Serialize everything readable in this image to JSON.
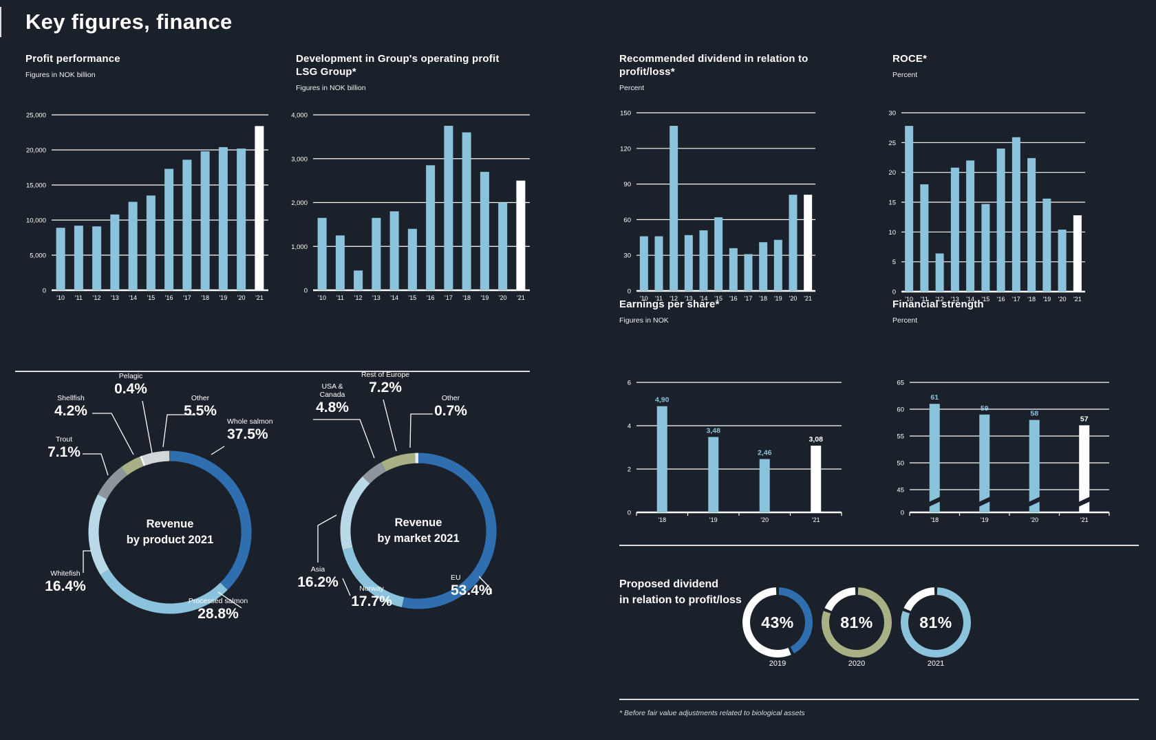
{
  "page_title": "Key figures, finance",
  "footnote": "* Before fair value adjustments related to biological assets",
  "colors": {
    "background": "#1b212b",
    "bar": "#8cc3dc",
    "highlight": "#ffffff",
    "grid": "#ffffff",
    "dark_blue": "#2f6fb0",
    "light_blue": "#8cc3dc",
    "pale_blue": "#bad9e8",
    "gray": "#8e959c",
    "olive": "#a7b185",
    "light_gray": "#d3d6d9"
  },
  "chart_data": [
    {
      "id": "profit_performance",
      "type": "bar",
      "title": "Profit performance",
      "subtitle": "Figures in NOK billion",
      "categories": [
        "'10",
        "'11",
        "'12",
        "'13",
        "'14",
        "'15",
        "'16",
        "'17",
        "'18",
        "'19",
        "'20",
        "'21"
      ],
      "values": [
        8900,
        9200,
        9100,
        10800,
        12600,
        13500,
        17300,
        18600,
        19800,
        20400,
        20200,
        23400
      ],
      "ylim": [
        0,
        25000
      ],
      "yticks": [
        {
          "value": 0,
          "label": "0"
        },
        {
          "value": 5000,
          "label": "5,000"
        },
        {
          "value": 10000,
          "label": "10,000"
        },
        {
          "value": 15000,
          "label": "15,000"
        },
        {
          "value": 20000,
          "label": "20,000"
        },
        {
          "value": 25000,
          "label": "25,000"
        }
      ],
      "highlight_last": true
    },
    {
      "id": "operating_profit",
      "type": "bar",
      "title": "Development in Group's operating profit",
      "title2": "LSG Group*",
      "subtitle": "Figures in NOK billion",
      "categories": [
        "'10",
        "'11",
        "'12",
        "'13",
        "'14",
        "'15",
        "'16",
        "'17",
        "'18",
        "'19",
        "'20",
        "'21"
      ],
      "values": [
        1650,
        1250,
        450,
        1650,
        1800,
        1400,
        2850,
        3750,
        3600,
        2700,
        2000,
        2500
      ],
      "ylim": [
        0,
        4000
      ],
      "yticks": [
        {
          "value": 0,
          "label": "0"
        },
        {
          "value": 1000,
          "label": "1,000"
        },
        {
          "value": 2000,
          "label": "2,000"
        },
        {
          "value": 3000,
          "label": "3,000"
        },
        {
          "value": 4000,
          "label": "4,000"
        }
      ],
      "highlight_last": true
    },
    {
      "id": "dividend_recommended",
      "type": "bar",
      "title": "Recommended dividend in relation to",
      "title2": "profit/loss*",
      "subtitle": "Percent",
      "categories": [
        "'10",
        "'11",
        "'12",
        "'13",
        "'14",
        "'15",
        "'16",
        "'17",
        "'18",
        "'19",
        "'20",
        "'21"
      ],
      "values": [
        46,
        46,
        139,
        47,
        51,
        62,
        36,
        31,
        41,
        43,
        81,
        81
      ],
      "ylim": [
        0,
        150
      ],
      "yticks": [
        {
          "value": 0,
          "label": "0"
        },
        {
          "value": 30,
          "label": "30"
        },
        {
          "value": 60,
          "label": "60"
        },
        {
          "value": 90,
          "label": "90"
        },
        {
          "value": 120,
          "label": "120"
        },
        {
          "value": 150,
          "label": "150"
        }
      ],
      "highlight_last": true
    },
    {
      "id": "roce",
      "type": "bar",
      "title": "ROCE*",
      "subtitle": "Percent",
      "categories": [
        "'10",
        "'11",
        "'12",
        "'13",
        "'14",
        "'15",
        "'16",
        "'17",
        "'18",
        "'19",
        "'20",
        "'21"
      ],
      "values": [
        27.8,
        18,
        6.4,
        20.8,
        22,
        14.7,
        24,
        25.9,
        22.4,
        15.6,
        10.4,
        12.8
      ],
      "ylim": [
        0,
        30
      ],
      "yticks": [
        {
          "value": 0,
          "label": "0"
        },
        {
          "value": 5,
          "label": "5"
        },
        {
          "value": 10,
          "label": "10"
        },
        {
          "value": 15,
          "label": "15"
        },
        {
          "value": 20,
          "label": "20"
        },
        {
          "value": 25,
          "label": "25"
        },
        {
          "value": 30,
          "label": "30"
        }
      ],
      "highlight_last": true
    },
    {
      "id": "earnings_per_share",
      "type": "bar",
      "title": "Earnings per share*",
      "subtitle": "Figures in NOK",
      "categories": [
        "'18",
        "'19",
        "'20",
        "'21"
      ],
      "values": [
        4.9,
        3.48,
        2.46,
        3.08
      ],
      "value_labels": [
        "4,90",
        "3,48",
        "2,46",
        "3,08"
      ],
      "ylim": [
        0,
        6
      ],
      "yticks": [
        {
          "value": 0,
          "label": "0"
        },
        {
          "value": 2,
          "label": "2"
        },
        {
          "value": 4,
          "label": "4"
        },
        {
          "value": 6,
          "label": "6"
        }
      ],
      "highlight_last": true
    },
    {
      "id": "financial_strength",
      "type": "bar",
      "title": "Financial strength",
      "subtitle": "Percent",
      "categories": [
        "'18",
        "'19",
        "'20",
        "'21"
      ],
      "values": [
        61,
        59,
        58,
        57
      ],
      "value_labels": [
        "61",
        "59",
        "58",
        "57"
      ],
      "ylim": [
        0,
        65
      ],
      "broken_axis": true,
      "yticks": [
        {
          "value": 0,
          "label": "0"
        },
        {
          "value": 45,
          "label": "45"
        },
        {
          "value": 50,
          "label": "50"
        },
        {
          "value": 55,
          "label": "55"
        },
        {
          "value": 60,
          "label": "60"
        },
        {
          "value": 65,
          "label": "65"
        }
      ],
      "highlight_last": true
    },
    {
      "id": "revenue_by_product",
      "type": "pie",
      "center_label": [
        "Revenue",
        "by product 2021"
      ],
      "segments": [
        {
          "label": "Whole salmon",
          "pct": 37.5,
          "pct_label": "37.5%",
          "color": "#2f6fb0"
        },
        {
          "label": "Processed salmon",
          "pct": 28.8,
          "pct_label": "28.8%",
          "color": "#8cc3dc"
        },
        {
          "label": "Whitefish",
          "pct": 16.4,
          "pct_label": "16.4%",
          "color": "#bad9e8"
        },
        {
          "label": "Trout",
          "pct": 7.1,
          "pct_label": "7.1%",
          "color": "#8e959c"
        },
        {
          "label": "Shellfish",
          "pct": 4.2,
          "pct_label": "4.2%",
          "color": "#a7b185"
        },
        {
          "label": "Pelagic",
          "pct": 0.4,
          "pct_label": "0.4%",
          "color": "#ffffff"
        },
        {
          "label": "Other",
          "pct": 5.5,
          "pct_label": "5.5%",
          "color": "#d3d6d9"
        }
      ]
    },
    {
      "id": "revenue_by_market",
      "type": "pie",
      "center_label": [
        "Revenue",
        "by market 2021"
      ],
      "segments": [
        {
          "label": "EU",
          "pct": 53.4,
          "pct_label": "53.4%",
          "color": "#2f6fb0"
        },
        {
          "label": "Norway",
          "pct": 17.7,
          "pct_label": "17.7%",
          "color": "#8cc3dc"
        },
        {
          "label": "Asia",
          "pct": 16.2,
          "pct_label": "16.2%",
          "color": "#bad9e8"
        },
        {
          "label": "USA & Canada",
          "pct": 4.8,
          "pct_label": "4.8%",
          "color": "#8e959c",
          "label_lines": [
            "USA &",
            "Canada"
          ]
        },
        {
          "label": "Rest of Europe",
          "pct": 7.2,
          "pct_label": "7.2%",
          "color": "#a7b185"
        },
        {
          "label": "Other",
          "pct": 0.7,
          "pct_label": "0.7%",
          "color": "#e9ecee"
        }
      ]
    },
    {
      "id": "proposed_dividend",
      "type": "pie",
      "title_line1": "Proposed dividend",
      "title_line2": "in relation to profit/loss",
      "items": [
        {
          "year": "2019",
          "pct": 43,
          "pct_label": "43%",
          "color": "#2f6fb0"
        },
        {
          "year": "2020",
          "pct": 81,
          "pct_label": "81%",
          "color": "#a7b185"
        },
        {
          "year": "2021",
          "pct": 81,
          "pct_label": "81%",
          "color": "#8cc3dc"
        }
      ]
    }
  ]
}
